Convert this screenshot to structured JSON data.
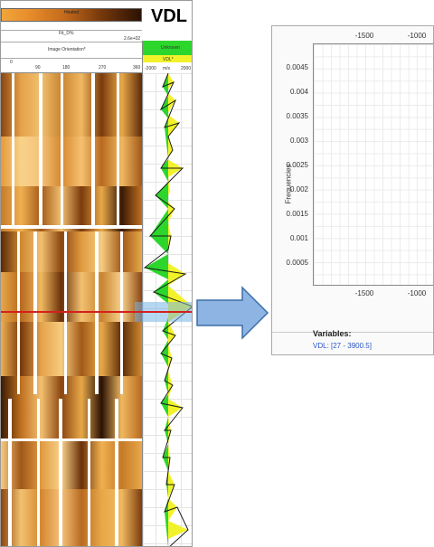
{
  "log_panel": {
    "title": "VDL",
    "colorbar_label": "Heated",
    "header": {
      "row1": "Fit_D%",
      "row1_right": "2.6e+02",
      "row2": "Image Orientation*",
      "ticks": [
        "0",
        "90",
        "180",
        "270",
        "360"
      ],
      "vdl_flag": "Unknown",
      "vdl_name": "VDL*",
      "vdl_min": "-2000",
      "vdl_unit": "m/s",
      "vdl_max": "2000"
    },
    "colors": {
      "image_light": "#f0a63a",
      "image_dark": "#2a1204",
      "vdl_green": "#2cd62c",
      "vdl_yellow": "#f2f22a",
      "highlight": "#78b4e6",
      "cursor_line": "#d42020"
    }
  },
  "arrow": {
    "icon": "right-arrow-icon",
    "color": "#8db4e2"
  },
  "histogram": {
    "y_axis_title": "Frequencies",
    "y_ticks": [
      "0.0045",
      "0.004",
      "0.0035",
      "0.003",
      "0.0025",
      "0.002",
      "0.0015",
      "0.001",
      "0.0005"
    ],
    "x_ticks_top": [
      "-1500",
      "-1000"
    ],
    "x_ticks_bottom": [
      "-1500",
      "-1000"
    ],
    "variables_title": "Variables:",
    "variable_item": "VDL: [27 - 3900.5]"
  }
}
